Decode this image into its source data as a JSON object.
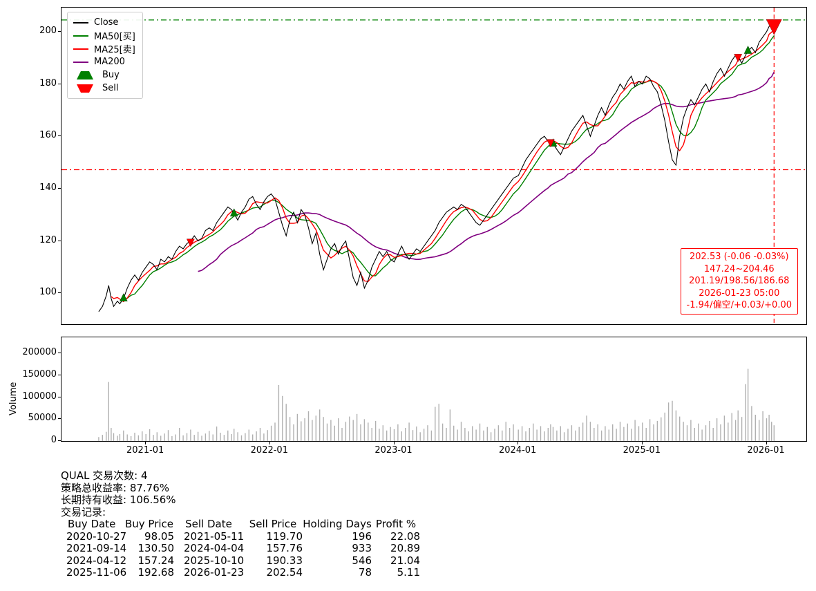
{
  "chart_data": {
    "type": "line",
    "title": "",
    "time_axis": {
      "lim": [
        2020.32,
        2026.32
      ],
      "ticks": [
        {
          "t": 2021.0,
          "label": "2021-01"
        },
        {
          "t": 2022.0,
          "label": "2022-01"
        },
        {
          "t": 2023.0,
          "label": "2023-01"
        },
        {
          "t": 2024.0,
          "label": "2024-01"
        },
        {
          "t": 2025.0,
          "label": "2025-01"
        },
        {
          "t": 2026.0,
          "label": "2026-01"
        }
      ]
    },
    "price_axis": {
      "lim": [
        88.2,
        209.2
      ],
      "ticks": [
        100,
        120,
        140,
        160,
        180,
        200
      ]
    },
    "volume_axis": {
      "lim": [
        0,
        237000
      ],
      "ticks": [
        0,
        50000,
        100000,
        150000,
        200000
      ],
      "ylabel": "Volume"
    },
    "series_meta": {
      "close": {
        "label": "Close",
        "color": "#000000"
      },
      "ma50": {
        "label": "MA50[买]",
        "color": "#008000",
        "window_years": 0.2
      },
      "ma25": {
        "label": "MA25[卖]",
        "color": "#ff0000",
        "window_years": 0.1
      },
      "ma200": {
        "label": "MA200",
        "color": "#800080",
        "window_years": 0.8
      }
    },
    "volume_color": "#b0b0b0",
    "points": [
      [
        2020.62,
        93,
        9000
      ],
      [
        2020.65,
        95,
        14000
      ],
      [
        2020.68,
        99,
        21000
      ],
      [
        2020.7,
        103,
        135000
      ],
      [
        2020.72,
        98,
        30000
      ],
      [
        2020.74,
        95,
        18000
      ],
      [
        2020.77,
        97,
        12000
      ],
      [
        2020.79,
        96,
        16000
      ],
      [
        2020.82,
        98,
        24000
      ],
      [
        2020.85,
        102,
        15000
      ],
      [
        2020.88,
        105,
        11000
      ],
      [
        2020.91,
        107,
        19000
      ],
      [
        2020.94,
        105,
        13000
      ],
      [
        2020.97,
        108,
        22000
      ],
      [
        2021.0,
        110,
        16000
      ],
      [
        2021.03,
        112,
        27000
      ],
      [
        2021.06,
        111,
        14000
      ],
      [
        2021.09,
        109,
        20000
      ],
      [
        2021.12,
        113,
        12000
      ],
      [
        2021.15,
        112,
        17000
      ],
      [
        2021.18,
        114,
        25000
      ],
      [
        2021.21,
        113,
        11000
      ],
      [
        2021.24,
        116,
        15000
      ],
      [
        2021.27,
        118,
        30000
      ],
      [
        2021.3,
        117,
        13000
      ],
      [
        2021.33,
        119,
        18000
      ],
      [
        2021.36,
        120,
        26000
      ],
      [
        2021.39,
        122,
        14000
      ],
      [
        2021.42,
        120,
        21000
      ],
      [
        2021.45,
        121,
        12000
      ],
      [
        2021.48,
        124,
        17000
      ],
      [
        2021.51,
        125,
        23000
      ],
      [
        2021.54,
        124,
        15000
      ],
      [
        2021.57,
        127,
        33000
      ],
      [
        2021.6,
        129,
        19000
      ],
      [
        2021.63,
        131,
        14000
      ],
      [
        2021.66,
        133,
        24000
      ],
      [
        2021.69,
        132,
        16000
      ],
      [
        2021.71,
        130.5,
        28000
      ],
      [
        2021.74,
        128,
        20000
      ],
      [
        2021.77,
        131,
        13000
      ],
      [
        2021.8,
        133,
        18000
      ],
      [
        2021.83,
        136,
        26000
      ],
      [
        2021.86,
        137,
        15000
      ],
      [
        2021.89,
        134,
        22000
      ],
      [
        2021.92,
        132,
        30000
      ],
      [
        2021.95,
        135,
        17000
      ],
      [
        2021.98,
        137,
        25000
      ],
      [
        2022.01,
        138,
        35000
      ],
      [
        2022.04,
        136,
        42000
      ],
      [
        2022.07,
        131,
        128000
      ],
      [
        2022.1,
        126,
        103000
      ],
      [
        2022.13,
        122,
        85000
      ],
      [
        2022.16,
        128,
        55000
      ],
      [
        2022.19,
        131,
        38000
      ],
      [
        2022.22,
        127,
        62000
      ],
      [
        2022.25,
        132,
        45000
      ],
      [
        2022.28,
        130,
        52000
      ],
      [
        2022.31,
        125,
        68000
      ],
      [
        2022.34,
        119,
        48000
      ],
      [
        2022.37,
        123,
        58000
      ],
      [
        2022.4,
        115,
        72000
      ],
      [
        2022.43,
        109,
        55000
      ],
      [
        2022.46,
        113,
        40000
      ],
      [
        2022.49,
        117,
        48000
      ],
      [
        2022.52,
        119,
        35000
      ],
      [
        2022.55,
        115,
        52000
      ],
      [
        2022.58,
        118,
        30000
      ],
      [
        2022.61,
        120,
        44000
      ],
      [
        2022.64,
        113,
        56000
      ],
      [
        2022.67,
        106,
        48000
      ],
      [
        2022.7,
        103,
        62000
      ],
      [
        2022.73,
        108,
        38000
      ],
      [
        2022.76,
        102,
        50000
      ],
      [
        2022.79,
        105,
        42000
      ],
      [
        2022.82,
        110,
        30000
      ],
      [
        2022.85,
        113,
        46000
      ],
      [
        2022.88,
        116,
        28000
      ],
      [
        2022.91,
        114,
        36000
      ],
      [
        2022.94,
        116,
        24000
      ],
      [
        2022.97,
        113,
        32000
      ],
      [
        2023.0,
        112,
        27000
      ],
      [
        2023.03,
        115,
        38000
      ],
      [
        2023.06,
        118,
        22000
      ],
      [
        2023.09,
        115,
        30000
      ],
      [
        2023.12,
        113,
        42000
      ],
      [
        2023.15,
        115,
        25000
      ],
      [
        2023.18,
        117,
        33000
      ],
      [
        2023.21,
        116,
        20000
      ],
      [
        2023.24,
        118,
        28000
      ],
      [
        2023.27,
        120,
        36000
      ],
      [
        2023.3,
        122,
        24000
      ],
      [
        2023.33,
        124,
        78000
      ],
      [
        2023.36,
        127,
        85000
      ],
      [
        2023.39,
        129,
        40000
      ],
      [
        2023.42,
        131,
        30000
      ],
      [
        2023.45,
        132,
        72000
      ],
      [
        2023.48,
        133,
        35000
      ],
      [
        2023.51,
        132,
        26000
      ],
      [
        2023.54,
        134,
        44000
      ],
      [
        2023.57,
        133,
        30000
      ],
      [
        2023.6,
        131,
        22000
      ],
      [
        2023.63,
        129,
        34000
      ],
      [
        2023.66,
        127,
        26000
      ],
      [
        2023.69,
        126,
        40000
      ],
      [
        2023.72,
        128,
        24000
      ],
      [
        2023.75,
        130,
        32000
      ],
      [
        2023.78,
        132,
        20000
      ],
      [
        2023.81,
        134,
        28000
      ],
      [
        2023.84,
        136,
        36000
      ],
      [
        2023.87,
        138,
        24000
      ],
      [
        2023.9,
        140,
        44000
      ],
      [
        2023.93,
        142,
        30000
      ],
      [
        2023.96,
        144,
        38000
      ],
      [
        2024.0,
        145,
        26000
      ],
      [
        2024.03,
        148,
        34000
      ],
      [
        2024.06,
        151,
        22000
      ],
      [
        2024.09,
        153,
        30000
      ],
      [
        2024.12,
        155,
        40000
      ],
      [
        2024.15,
        157,
        26000
      ],
      [
        2024.18,
        159,
        34000
      ],
      [
        2024.21,
        160,
        22000
      ],
      [
        2024.24,
        158,
        30000
      ],
      [
        2024.26,
        157.76,
        38000
      ],
      [
        2024.28,
        157.24,
        32000
      ],
      [
        2024.31,
        155,
        24000
      ],
      [
        2024.34,
        153,
        34000
      ],
      [
        2024.37,
        156,
        20000
      ],
      [
        2024.4,
        159,
        28000
      ],
      [
        2024.43,
        162,
        36000
      ],
      [
        2024.46,
        164,
        24000
      ],
      [
        2024.49,
        166,
        32000
      ],
      [
        2024.52,
        168,
        42000
      ],
      [
        2024.55,
        164,
        58000
      ],
      [
        2024.58,
        160,
        44000
      ],
      [
        2024.61,
        164,
        30000
      ],
      [
        2024.64,
        168,
        38000
      ],
      [
        2024.67,
        171,
        24000
      ],
      [
        2024.7,
        168,
        34000
      ],
      [
        2024.73,
        172,
        26000
      ],
      [
        2024.76,
        175,
        38000
      ],
      [
        2024.79,
        177,
        28000
      ],
      [
        2024.82,
        180,
        44000
      ],
      [
        2024.85,
        178,
        32000
      ],
      [
        2024.88,
        181,
        40000
      ],
      [
        2024.91,
        183,
        28000
      ],
      [
        2024.94,
        179,
        48000
      ],
      [
        2024.97,
        181,
        34000
      ],
      [
        2025.0,
        180,
        42000
      ],
      [
        2025.03,
        183,
        30000
      ],
      [
        2025.06,
        182,
        50000
      ],
      [
        2025.09,
        179,
        38000
      ],
      [
        2025.12,
        177,
        46000
      ],
      [
        2025.15,
        172,
        54000
      ],
      [
        2025.18,
        166,
        65000
      ],
      [
        2025.21,
        158,
        88000
      ],
      [
        2025.24,
        151,
        92000
      ],
      [
        2025.27,
        149,
        70000
      ],
      [
        2025.3,
        160,
        56000
      ],
      [
        2025.33,
        167,
        44000
      ],
      [
        2025.36,
        171,
        36000
      ],
      [
        2025.39,
        174,
        48000
      ],
      [
        2025.42,
        172,
        30000
      ],
      [
        2025.45,
        175,
        40000
      ],
      [
        2025.48,
        178,
        26000
      ],
      [
        2025.51,
        180,
        36000
      ],
      [
        2025.54,
        177,
        46000
      ],
      [
        2025.57,
        181,
        30000
      ],
      [
        2025.6,
        184,
        52000
      ],
      [
        2025.63,
        186,
        38000
      ],
      [
        2025.66,
        183,
        58000
      ],
      [
        2025.69,
        186,
        42000
      ],
      [
        2025.72,
        189,
        64000
      ],
      [
        2025.75,
        191,
        48000
      ],
      [
        2025.77,
        190.33,
        70000
      ],
      [
        2025.8,
        188,
        55000
      ],
      [
        2025.83,
        191,
        130000
      ],
      [
        2025.85,
        192.68,
        165000
      ],
      [
        2025.88,
        194,
        80000
      ],
      [
        2025.91,
        192,
        60000
      ],
      [
        2025.94,
        196,
        48000
      ],
      [
        2025.97,
        198,
        68000
      ],
      [
        2026.0,
        200,
        52000
      ],
      [
        2026.02,
        202,
        60000
      ],
      [
        2026.04,
        203,
        44000
      ],
      [
        2026.06,
        202.53,
        36000
      ]
    ],
    "markers": {
      "buy": {
        "label": "Buy",
        "color": "#008000",
        "points": [
          [
            2020.82,
            98.05
          ],
          [
            2021.71,
            130.5
          ],
          [
            2024.28,
            157.24
          ],
          [
            2025.85,
            192.68
          ]
        ]
      },
      "sell": {
        "label": "Sell",
        "color": "#ff0000",
        "points": [
          [
            2021.36,
            119.7
          ],
          [
            2024.26,
            157.76
          ],
          [
            2025.77,
            190.33
          ],
          [
            2026.06,
            202.54,
            1
          ]
        ]
      }
    },
    "hlines": [
      {
        "value": 204.46,
        "color": "#008000"
      },
      {
        "value": 147.24,
        "color": "#ff0000"
      }
    ],
    "vline": {
      "t": 2026.06,
      "color": "#ff0000"
    },
    "annotation": {
      "color": "#ff0000",
      "lines": [
        "202.53 (-0.06 -0.03%)",
        "147.24~204.46",
        "201.19/198.56/186.68",
        "2026-01-23 05:00",
        "-1.94/偏空/+0.03/+0.00"
      ]
    },
    "legend": {
      "items": [
        {
          "label": "Close",
          "color": "#000000",
          "swatch": "line"
        },
        {
          "label": "MA50[买]",
          "color": "#008000",
          "swatch": "line"
        },
        {
          "label": "MA25[卖]",
          "color": "#ff0000",
          "swatch": "line"
        },
        {
          "label": "MA200",
          "color": "#800080",
          "swatch": "line"
        },
        {
          "label": "Buy",
          "color": "#008000",
          "swatch": "triangle-up"
        },
        {
          "label": "Sell",
          "color": "#ff0000",
          "swatch": "triangle-down"
        }
      ]
    }
  },
  "summary": {
    "line_trades": "QUAL 交易次数: 4",
    "line_strategy_return": "策略总收益率: 87.76%",
    "line_hold_return": "长期持有收益: 106.56%",
    "line_records": "交易记录:",
    "table": {
      "headers": [
        "Buy Date",
        "Buy Price",
        "Sell Date",
        "Sell Price",
        "Holding Days",
        "Profit %"
      ],
      "rows": [
        [
          "2020-10-27",
          "98.05",
          "2021-05-11",
          "119.70",
          "196",
          "22.08"
        ],
        [
          "2021-09-14",
          "130.50",
          "2024-04-04",
          "157.76",
          "933",
          "20.89"
        ],
        [
          "2024-04-12",
          "157.24",
          "2025-10-10",
          "190.33",
          "546",
          "21.04"
        ],
        [
          "2025-11-06",
          "192.68",
          "2026-01-23",
          "202.54",
          "78",
          "5.11"
        ]
      ]
    }
  }
}
